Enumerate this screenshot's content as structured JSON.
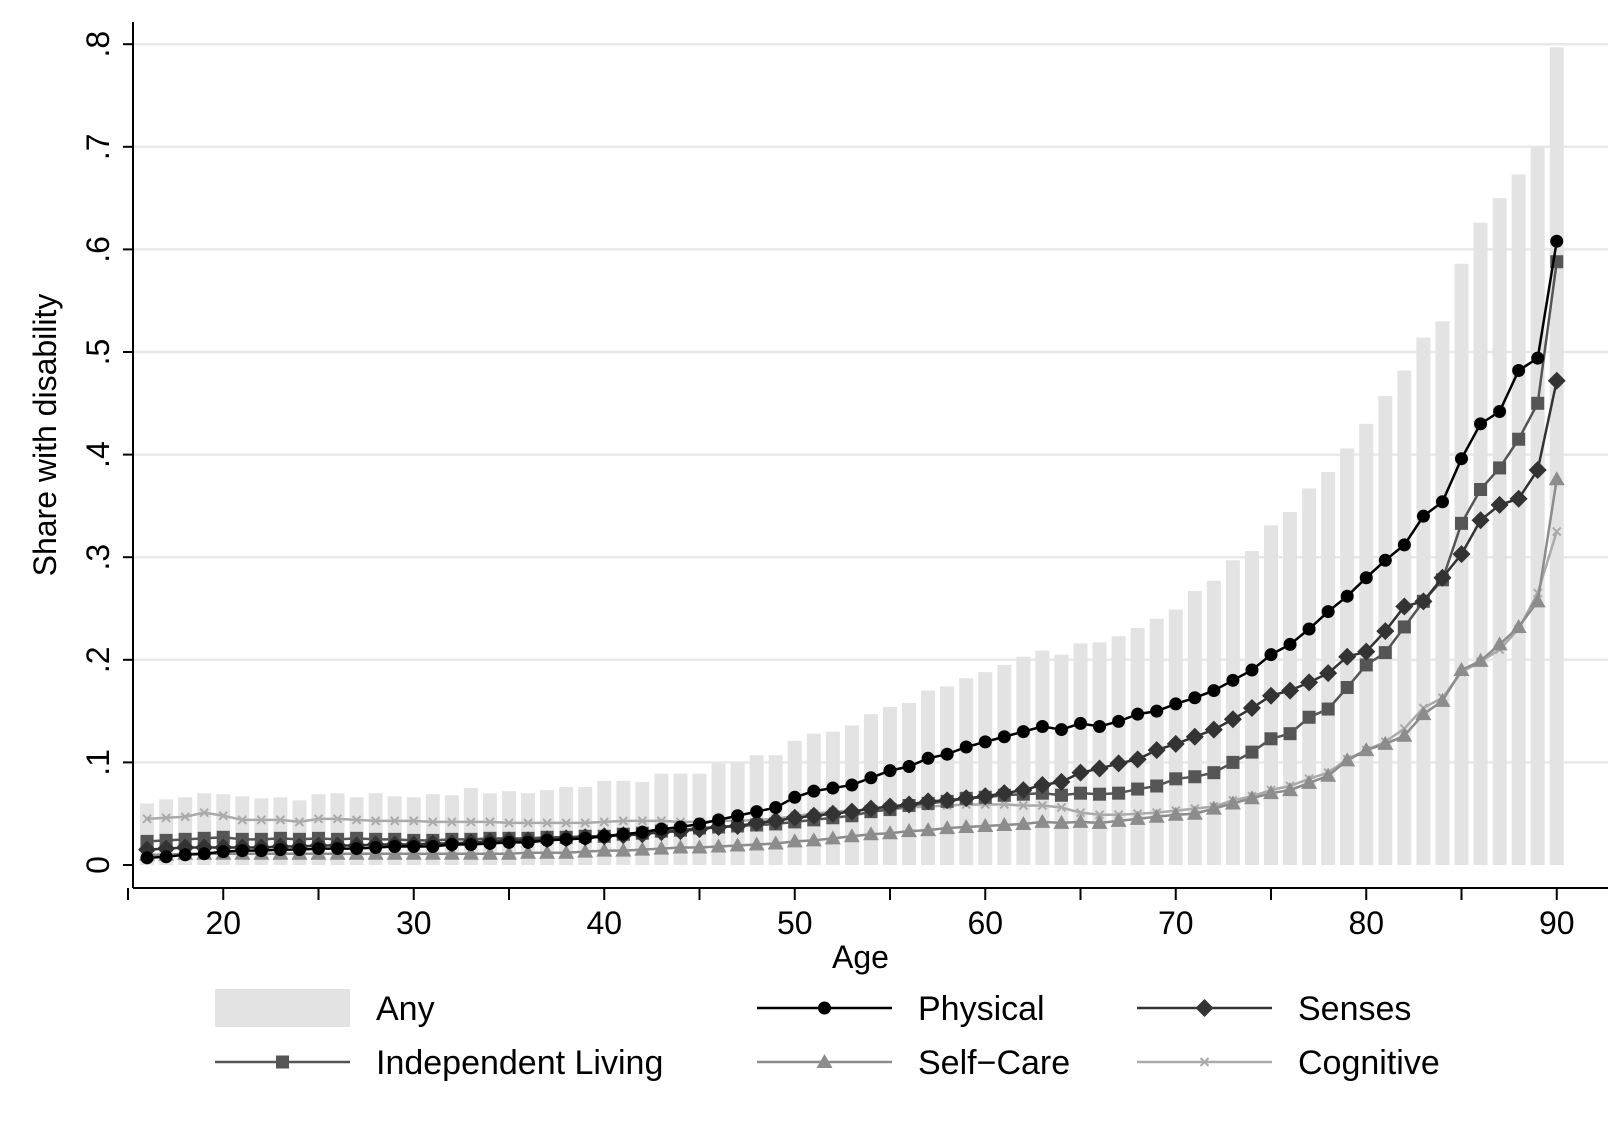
{
  "chart_data": {
    "type": "bar",
    "xlabel": "Age",
    "ylabel": "Share with disability",
    "xlim": [
      15,
      90.5
    ],
    "ylim": [
      0,
      0.8
    ],
    "x_ticks": [
      20,
      30,
      40,
      50,
      60,
      70,
      80,
      90
    ],
    "x_tick_labels": [
      "20",
      "30",
      "40",
      "50",
      "60",
      "70",
      "80",
      "90"
    ],
    "y_ticks": [
      0,
      0.1,
      0.2,
      0.3,
      0.4,
      0.5,
      0.6,
      0.7,
      0.8
    ],
    "y_tick_labels": [
      "0",
      ".1",
      ".2",
      ".3",
      ".4",
      ".5",
      ".6",
      ".7",
      ".8"
    ],
    "grid": true,
    "legend_position": "bottom",
    "colors": {
      "Any": "#e3e3e3",
      "Physical": "#000000",
      "Senses": "#333333",
      "Independent Living": "#555555",
      "Self-Care": "#8c8c8c",
      "Cognitive": "#aaaaaa",
      "grid": "#e8e8e8"
    },
    "x": [
      16,
      17,
      18,
      19,
      20,
      21,
      22,
      23,
      24,
      25,
      26,
      27,
      28,
      29,
      30,
      31,
      32,
      33,
      34,
      35,
      36,
      37,
      38,
      39,
      40,
      41,
      42,
      43,
      44,
      45,
      46,
      47,
      48,
      49,
      50,
      51,
      52,
      53,
      54,
      55,
      56,
      57,
      58,
      59,
      60,
      61,
      62,
      63,
      64,
      65,
      66,
      67,
      68,
      69,
      70,
      71,
      72,
      73,
      74,
      75,
      76,
      77,
      78,
      79,
      80,
      81,
      82,
      83,
      84,
      85,
      86,
      87,
      88,
      89,
      90
    ],
    "series": [
      {
        "name": "Any",
        "kind": "bar",
        "marker": "none",
        "values": [
          0.06,
          0.064,
          0.066,
          0.07,
          0.069,
          0.067,
          0.065,
          0.066,
          0.063,
          0.069,
          0.07,
          0.066,
          0.07,
          0.067,
          0.066,
          0.069,
          0.068,
          0.075,
          0.07,
          0.072,
          0.07,
          0.073,
          0.076,
          0.076,
          0.082,
          0.082,
          0.081,
          0.089,
          0.089,
          0.089,
          0.099,
          0.1,
          0.107,
          0.107,
          0.121,
          0.128,
          0.13,
          0.136,
          0.147,
          0.154,
          0.158,
          0.17,
          0.174,
          0.182,
          0.188,
          0.195,
          0.203,
          0.209,
          0.205,
          0.216,
          0.217,
          0.223,
          0.231,
          0.24,
          0.249,
          0.267,
          0.277,
          0.297,
          0.306,
          0.331,
          0.344,
          0.367,
          0.383,
          0.406,
          0.43,
          0.457,
          0.482,
          0.514,
          0.53,
          0.586,
          0.626,
          0.65,
          0.673,
          0.7,
          0.797
        ]
      },
      {
        "name": "Physical",
        "kind": "line",
        "marker": "circle",
        "values": [
          0.007,
          0.008,
          0.01,
          0.011,
          0.013,
          0.014,
          0.014,
          0.015,
          0.015,
          0.016,
          0.016,
          0.016,
          0.017,
          0.018,
          0.018,
          0.018,
          0.02,
          0.02,
          0.021,
          0.022,
          0.022,
          0.024,
          0.025,
          0.026,
          0.028,
          0.03,
          0.032,
          0.035,
          0.037,
          0.04,
          0.044,
          0.048,
          0.052,
          0.056,
          0.066,
          0.072,
          0.075,
          0.078,
          0.085,
          0.092,
          0.096,
          0.104,
          0.108,
          0.115,
          0.12,
          0.125,
          0.13,
          0.135,
          0.132,
          0.138,
          0.135,
          0.14,
          0.147,
          0.15,
          0.157,
          0.163,
          0.17,
          0.18,
          0.19,
          0.205,
          0.215,
          0.23,
          0.247,
          0.262,
          0.28,
          0.297,
          0.312,
          0.34,
          0.354,
          0.396,
          0.43,
          0.442,
          0.482,
          0.494,
          0.608
        ]
      },
      {
        "name": "Senses",
        "kind": "line",
        "marker": "diamond",
        "values": [
          0.015,
          0.016,
          0.017,
          0.017,
          0.017,
          0.017,
          0.017,
          0.018,
          0.018,
          0.019,
          0.019,
          0.019,
          0.02,
          0.02,
          0.02,
          0.021,
          0.021,
          0.022,
          0.023,
          0.024,
          0.024,
          0.025,
          0.026,
          0.027,
          0.028,
          0.029,
          0.03,
          0.032,
          0.033,
          0.035,
          0.037,
          0.038,
          0.041,
          0.043,
          0.046,
          0.048,
          0.05,
          0.052,
          0.055,
          0.057,
          0.059,
          0.062,
          0.063,
          0.065,
          0.067,
          0.07,
          0.073,
          0.078,
          0.081,
          0.09,
          0.094,
          0.099,
          0.103,
          0.112,
          0.118,
          0.125,
          0.132,
          0.142,
          0.153,
          0.165,
          0.17,
          0.178,
          0.187,
          0.203,
          0.208,
          0.228,
          0.252,
          0.257,
          0.28,
          0.303,
          0.336,
          0.351,
          0.357,
          0.385,
          0.472
        ]
      },
      {
        "name": "Independent Living",
        "kind": "line",
        "marker": "square",
        "values": [
          0.023,
          0.024,
          0.025,
          0.026,
          0.027,
          0.025,
          0.025,
          0.026,
          0.025,
          0.026,
          0.025,
          0.026,
          0.025,
          0.025,
          0.024,
          0.024,
          0.025,
          0.025,
          0.026,
          0.026,
          0.026,
          0.027,
          0.027,
          0.028,
          0.028,
          0.03,
          0.031,
          0.033,
          0.034,
          0.036,
          0.037,
          0.038,
          0.039,
          0.04,
          0.042,
          0.044,
          0.046,
          0.048,
          0.052,
          0.054,
          0.058,
          0.06,
          0.062,
          0.065,
          0.066,
          0.068,
          0.069,
          0.07,
          0.068,
          0.07,
          0.069,
          0.07,
          0.074,
          0.077,
          0.084,
          0.086,
          0.09,
          0.1,
          0.11,
          0.123,
          0.128,
          0.144,
          0.152,
          0.173,
          0.195,
          0.207,
          0.232,
          0.257,
          0.278,
          0.333,
          0.366,
          0.387,
          0.415,
          0.45,
          0.588
        ]
      },
      {
        "name": "Self-Care",
        "kind": "line",
        "marker": "triangle",
        "values": [
          0.01,
          0.01,
          0.011,
          0.011,
          0.011,
          0.011,
          0.011,
          0.011,
          0.011,
          0.011,
          0.011,
          0.011,
          0.011,
          0.011,
          0.011,
          0.011,
          0.011,
          0.011,
          0.011,
          0.011,
          0.012,
          0.012,
          0.012,
          0.013,
          0.014,
          0.014,
          0.015,
          0.016,
          0.017,
          0.017,
          0.018,
          0.019,
          0.02,
          0.021,
          0.023,
          0.024,
          0.026,
          0.028,
          0.03,
          0.031,
          0.033,
          0.034,
          0.036,
          0.037,
          0.038,
          0.039,
          0.04,
          0.042,
          0.041,
          0.042,
          0.041,
          0.043,
          0.045,
          0.047,
          0.049,
          0.05,
          0.055,
          0.06,
          0.065,
          0.07,
          0.073,
          0.08,
          0.087,
          0.102,
          0.112,
          0.118,
          0.126,
          0.147,
          0.16,
          0.19,
          0.199,
          0.215,
          0.232,
          0.257,
          0.376
        ]
      },
      {
        "name": "Cognitive",
        "kind": "line",
        "marker": "x",
        "values": [
          0.045,
          0.046,
          0.047,
          0.051,
          0.048,
          0.044,
          0.044,
          0.044,
          0.042,
          0.045,
          0.045,
          0.044,
          0.043,
          0.043,
          0.043,
          0.042,
          0.042,
          0.042,
          0.042,
          0.041,
          0.041,
          0.041,
          0.041,
          0.041,
          0.042,
          0.043,
          0.043,
          0.043,
          0.042,
          0.042,
          0.043,
          0.043,
          0.044,
          0.045,
          0.048,
          0.05,
          0.052,
          0.053,
          0.054,
          0.054,
          0.056,
          0.057,
          0.058,
          0.059,
          0.059,
          0.059,
          0.058,
          0.058,
          0.056,
          0.051,
          0.049,
          0.049,
          0.05,
          0.051,
          0.053,
          0.055,
          0.057,
          0.063,
          0.067,
          0.073,
          0.077,
          0.084,
          0.09,
          0.103,
          0.112,
          0.12,
          0.133,
          0.153,
          0.163,
          0.188,
          0.198,
          0.21,
          0.23,
          0.265,
          0.325
        ]
      }
    ],
    "legend": {
      "rows": [
        [
          "Any",
          "Physical",
          "Senses"
        ],
        [
          "Independent Living",
          "Self-Care",
          "Cognitive"
        ]
      ],
      "labels": {
        "Any": "Any",
        "Physical": "Physical",
        "Senses": "Senses",
        "Independent Living": "Independent Living",
        "Self-Care": "Self−Care",
        "Cognitive": "Cognitive"
      }
    }
  }
}
